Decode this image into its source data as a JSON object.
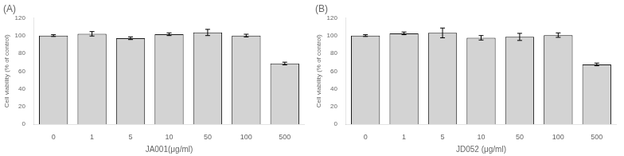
{
  "chart_data": [
    {
      "type": "bar",
      "title": "(A)",
      "x_label": "JA001(μg/ml)",
      "y_label": "Cell viability (% of control)",
      "categories": [
        "0",
        "1",
        "5",
        "10",
        "50",
        "100",
        "500"
      ],
      "values": [
        100.0,
        102.0,
        97.0,
        101.5,
        103.5,
        100.0,
        68.5
      ],
      "errors": [
        1.0,
        2.5,
        1.5,
        1.5,
        3.5,
        1.5,
        1.5
      ],
      "color": "#d3d3d3",
      "ylim": [
        0,
        120
      ],
      "yticks": [
        0,
        20,
        40,
        60,
        80,
        100,
        120
      ],
      "grid": false
    },
    {
      "type": "bar",
      "title": "(B)",
      "x_label": "JD052 (μg/ml)",
      "y_label": "Cell viability (% of control)",
      "categories": [
        "0",
        "1",
        "5",
        "10",
        "50",
        "100",
        "500"
      ],
      "values": [
        100.0,
        102.5,
        103.0,
        97.5,
        98.5,
        100.5,
        67.5
      ],
      "errors": [
        1.0,
        1.5,
        5.5,
        2.5,
        4.0,
        2.5,
        1.5
      ],
      "color": "#d3d3d3",
      "ylim": [
        0,
        120
      ],
      "yticks": [
        0,
        20,
        40,
        60,
        80,
        100,
        120
      ],
      "grid": false
    }
  ]
}
